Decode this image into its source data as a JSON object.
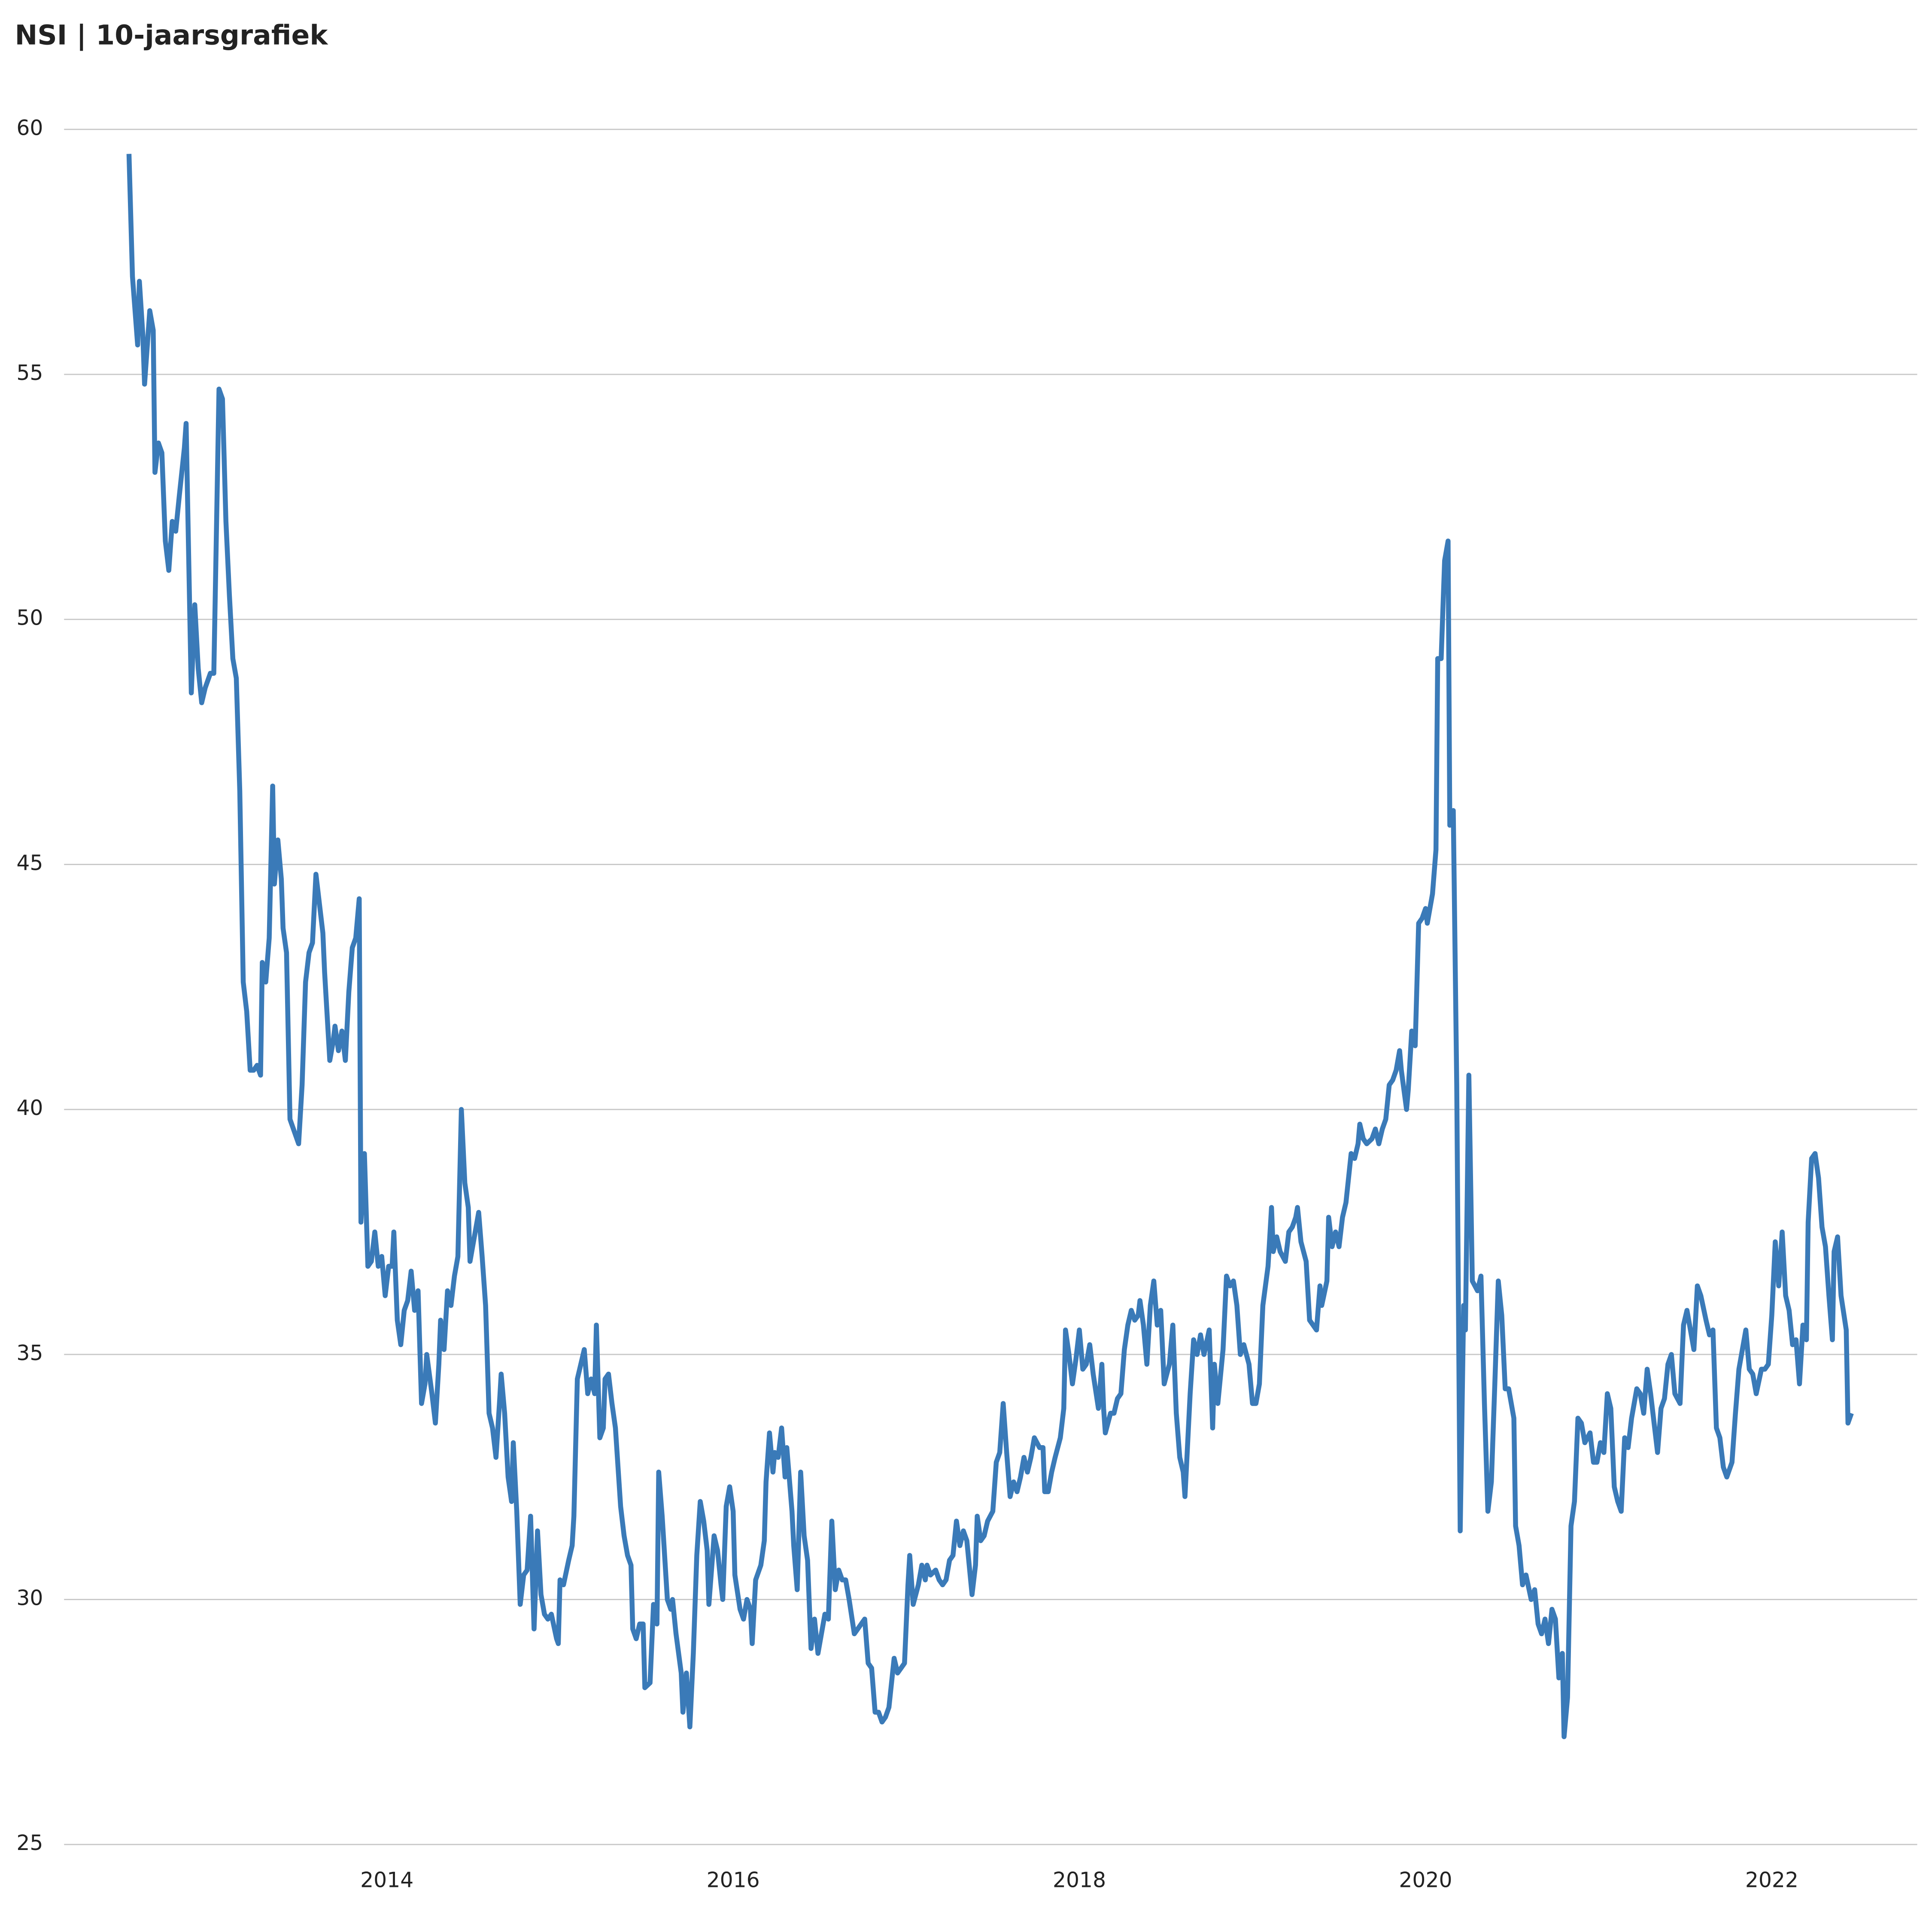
{
  "chart_data": {
    "type": "line",
    "title": "NSI | 10-jaarsgrafiek",
    "color": "#3a7ab8",
    "grid": true,
    "xlim": [
      2012.135,
      2022.84
    ],
    "xticks": [
      2014,
      2016,
      2018,
      2020,
      2022
    ],
    "ylim": [
      25,
      60
    ],
    "yticks": [
      25,
      30,
      35,
      40,
      45,
      50,
      55,
      60
    ],
    "x": [
      2012.51,
      2012.53,
      2012.56,
      2012.57,
      2012.59,
      2012.6,
      2012.63,
      2012.65,
      2012.66,
      2012.68,
      2012.7,
      2012.72,
      2012.74,
      2012.76,
      2012.78,
      2012.8,
      2012.83,
      2012.84,
      2012.87,
      2012.89,
      2012.91,
      2012.93,
      2012.95,
      2012.98,
      2013.0,
      2013.01,
      2013.03,
      2013.05,
      2013.07,
      2013.09,
      2013.11,
      2013.13,
      2013.15,
      2013.17,
      2013.19,
      2013.21,
      2013.23,
      2013.25,
      2013.27,
      2013.28,
      2013.3,
      2013.32,
      2013.34,
      2013.35,
      2013.37,
      2013.39,
      2013.4,
      2013.42,
      2013.44,
      2013.47,
      2013.49,
      2013.51,
      2013.53,
      2013.55,
      2013.57,
      2013.59,
      2013.61,
      2013.63,
      2013.64,
      2013.67,
      2013.69,
      2013.7,
      2013.72,
      2013.74,
      2013.76,
      2013.78,
      2013.8,
      2013.82,
      2013.84,
      2013.85,
      2013.87,
      2013.89,
      2013.91,
      2013.93,
      2013.95,
      2013.97,
      2013.99,
      2014.01,
      2014.03,
      2014.04,
      2014.06,
      2014.08,
      2014.1,
      2014.12,
      2014.14,
      2014.16,
      2014.18,
      2014.2,
      2014.22,
      2014.23,
      2014.26,
      2014.28,
      2014.3,
      2014.31,
      2014.33,
      2014.35,
      2014.37,
      2014.39,
      2014.41,
      2014.43,
      2014.45,
      2014.47,
      2014.48,
      2014.51,
      2014.53,
      2014.55,
      2014.57,
      2014.59,
      2014.61,
      2014.63,
      2014.65,
      2014.66,
      2014.68,
      2014.7,
      2014.72,
      2014.73,
      2014.75,
      2014.77,
      2014.79,
      2014.81,
      2014.83,
      2014.85,
      2014.87,
      2014.89,
      2014.91,
      2014.93,
      2014.95,
      2014.98,
      2014.99,
      2015.0,
      2015.02,
      2015.05,
      2015.07,
      2015.08,
      2015.1,
      2015.12,
      2015.14,
      2015.16,
      2015.18,
      2015.2,
      2015.21,
      2015.23,
      2015.25,
      2015.26,
      2015.28,
      2015.3,
      2015.32,
      2015.35,
      2015.37,
      2015.39,
      2015.41,
      2015.42,
      2015.44,
      2015.46,
      2015.48,
      2015.49,
      2015.52,
      2015.54,
      2015.56,
      2015.57,
      2015.59,
      2015.62,
      2015.64,
      2015.65,
      2015.67,
      2015.7,
      2015.71,
      2015.73,
      2015.75,
      2015.77,
      2015.79,
      2015.81,
      2015.83,
      2015.85,
      2015.86,
      2015.89,
      2015.91,
      2015.93,
      2015.94,
      2015.96,
      2015.98,
      2016.0,
      2016.01,
      2016.04,
      2016.06,
      2016.08,
      2016.1,
      2016.11,
      2016.13,
      2016.16,
      2016.18,
      2016.19,
      2016.21,
      2016.23,
      2016.24,
      2016.26,
      2016.28,
      2016.3,
      2016.31,
      2016.34,
      2016.35,
      2016.37,
      2016.39,
      2016.41,
      2016.43,
      2016.45,
      2016.47,
      2016.49,
      2016.51,
      2016.53,
      2016.55,
      2016.57,
      2016.59,
      2016.61,
      2016.63,
      2016.65,
      2016.67,
      2016.7,
      2016.72,
      2016.74,
      2016.76,
      2016.78,
      2016.8,
      2016.82,
      2016.84,
      2016.86,
      2016.88,
      2016.9,
      2016.93,
      2016.95,
      2016.97,
      2016.99,
      2017.01,
      2017.02,
      2017.04,
      2017.07,
      2017.09,
      2017.11,
      2017.12,
      2017.14,
      2017.17,
      2017.19,
      2017.21,
      2017.23,
      2017.25,
      2017.27,
      2017.29,
      2017.31,
      2017.33,
      2017.35,
      2017.38,
      2017.4,
      2017.41,
      2017.43,
      2017.45,
      2017.47,
      2017.5,
      2017.52,
      2017.54,
      2017.56,
      2017.58,
      2017.6,
      2017.62,
      2017.64,
      2017.66,
      2017.68,
      2017.7,
      2017.72,
      2017.74,
      2017.77,
      2017.79,
      2017.8,
      2017.82,
      2017.84,
      2017.86,
      2017.89,
      2017.91,
      2017.92,
      2017.94,
      2017.96,
      2017.98,
      2018.0,
      2018.02,
      2018.04,
      2018.06,
      2018.08,
      2018.11,
      2018.13,
      2018.14,
      2018.15,
      2018.18,
      2018.2,
      2018.22,
      2018.24,
      2018.26,
      2018.28,
      2018.3,
      2018.32,
      2018.34,
      2018.35,
      2018.37,
      2018.39,
      2018.41,
      2018.43,
      2018.45,
      2018.47,
      2018.49,
      2018.52,
      2018.54,
      2018.56,
      2018.58,
      2018.6,
      2018.61,
      2018.64,
      2018.66,
      2018.68,
      2018.7,
      2018.72,
      2018.75,
      2018.77,
      2018.78,
      2018.8,
      2018.83,
      2018.85,
      2018.87,
      2018.89,
      2018.91,
      2018.93,
      2018.95,
      2018.98,
      2019.0,
      2019.02,
      2019.04,
      2019.06,
      2019.09,
      2019.11,
      2019.12,
      2019.14,
      2019.16,
      2019.19,
      2019.21,
      2019.23,
      2019.25,
      2019.26,
      2019.28,
      2019.31,
      2019.33,
      2019.35,
      2019.37,
      2019.39,
      2019.4,
      2019.43,
      2019.44,
      2019.46,
      2019.48,
      2019.5,
      2019.52,
      2019.54,
      2019.57,
      2019.59,
      2019.61,
      2019.62,
      2019.64,
      2019.66,
      2019.69,
      2019.71,
      2019.73,
      2019.75,
      2019.77,
      2019.79,
      2019.81,
      2019.83,
      2019.85,
      2019.86,
      2019.89,
      2019.9,
      2019.92,
      2019.94,
      2019.96,
      2019.98,
      2020.0,
      2020.01,
      2020.04,
      2020.06,
      2020.07,
      2020.09,
      2020.11,
      2020.13,
      2020.14,
      2020.16,
      2020.18,
      2020.2,
      2020.22,
      2020.23,
      2020.25,
      2020.27,
      2020.3,
      2020.32,
      2020.34,
      2020.36,
      2020.38,
      2020.4,
      2020.42,
      2020.44,
      2020.46,
      2020.48,
      2020.51,
      2020.52,
      2020.54,
      2020.56,
      2020.58,
      2020.61,
      2020.63,
      2020.65,
      2020.67,
      2020.69,
      2020.71,
      2020.73,
      2020.75,
      2020.77,
      2020.79,
      2020.8,
      2020.82,
      2020.84,
      2020.86,
      2020.88,
      2020.9,
      2020.92,
      2020.95,
      2020.97,
      2020.99,
      2021.01,
      2021.03,
      2021.05,
      2021.07,
      2021.09,
      2021.11,
      2021.13,
      2021.15,
      2021.17,
      2021.19,
      2021.22,
      2021.24,
      2021.26,
      2021.28,
      2021.3,
      2021.32,
      2021.34,
      2021.36,
      2021.38,
      2021.4,
      2021.42,
      2021.44,
      2021.47,
      2021.49,
      2021.51,
      2021.53,
      2021.55,
      2021.57,
      2021.59,
      2021.62,
      2021.64,
      2021.66,
      2021.68,
      2021.7,
      2021.72,
      2021.74,
      2021.77,
      2021.79,
      2021.81,
      2021.83,
      2021.85,
      2021.87,
      2021.89,
      2021.91,
      2021.94,
      2021.96,
      2021.98,
      2022.0,
      2022.02,
      2022.04,
      2022.06,
      2022.08,
      2022.1,
      2022.12,
      2022.14,
      2022.16,
      2022.18,
      2022.2,
      2022.21,
      2022.23,
      2022.25,
      2022.27,
      2022.29,
      2022.31,
      2022.33,
      2022.35,
      2022.36,
      2022.38,
      2022.4,
      2022.43,
      2022.44,
      2022.46
    ],
    "values": [
      59.5,
      57.0,
      55.6,
      56.9,
      55.8,
      54.8,
      56.3,
      55.9,
      53.0,
      53.6,
      53.4,
      51.6,
      51.0,
      52.0,
      51.8,
      52.5,
      53.5,
      54.0,
      48.5,
      50.3,
      49.0,
      48.3,
      48.6,
      48.9,
      48.9,
      50.8,
      54.7,
      54.5,
      52.0,
      50.5,
      49.2,
      48.8,
      46.5,
      42.6,
      42.0,
      40.8,
      40.8,
      40.9,
      40.7,
      43.0,
      42.6,
      43.5,
      46.6,
      44.6,
      45.5,
      44.7,
      43.7,
      43.2,
      39.8,
      39.5,
      39.3,
      40.5,
      42.6,
      43.2,
      43.4,
      44.8,
      44.2,
      43.6,
      42.8,
      41.0,
      41.4,
      41.7,
      41.2,
      41.6,
      41.0,
      42.4,
      43.3,
      43.5,
      44.3,
      37.7,
      39.1,
      36.8,
      36.9,
      37.5,
      36.8,
      37.0,
      36.2,
      36.8,
      36.8,
      37.5,
      35.7,
      35.2,
      35.9,
      36.1,
      36.7,
      35.9,
      36.3,
      34.0,
      34.4,
      35.0,
      34.2,
      33.6,
      34.8,
      35.7,
      35.1,
      36.3,
      36.0,
      36.6,
      37.0,
      40.0,
      38.5,
      38.0,
      36.9,
      37.5,
      37.9,
      37.0,
      36.0,
      33.8,
      33.5,
      32.9,
      34.0,
      34.6,
      33.8,
      32.5,
      32.0,
      33.2,
      31.8,
      29.9,
      30.5,
      30.6,
      31.7,
      29.4,
      31.4,
      30.1,
      29.7,
      29.6,
      29.7,
      29.2,
      29.1,
      30.4,
      30.3,
      30.8,
      31.1,
      31.7,
      34.5,
      34.8,
      35.1,
      34.2,
      34.5,
      34.2,
      35.6,
      33.3,
      33.5,
      34.5,
      34.6,
      34.0,
      33.5,
      31.9,
      31.3,
      30.9,
      30.7,
      29.4,
      29.2,
      29.5,
      29.5,
      28.2,
      28.3,
      29.9,
      29.5,
      32.6,
      31.7,
      30.0,
      29.8,
      30.0,
      29.3,
      28.5,
      27.7,
      28.5,
      27.4,
      28.9,
      30.9,
      32.0,
      31.6,
      31.0,
      29.9,
      31.3,
      31.0,
      30.3,
      30.0,
      31.9,
      32.3,
      31.8,
      30.5,
      29.8,
      29.6,
      30.0,
      29.8,
      29.1,
      30.4,
      30.7,
      31.2,
      32.4,
      33.4,
      32.6,
      33.0,
      32.9,
      33.5,
      32.5,
      33.1,
      31.8,
      31.1,
      30.2,
      32.6,
      31.3,
      30.8,
      29.0,
      29.6,
      28.9,
      29.3,
      29.7,
      29.6,
      31.6,
      30.2,
      30.6,
      30.4,
      30.4,
      30.0,
      29.3,
      29.4,
      29.5,
      29.6,
      28.7,
      28.6,
      27.7,
      27.7,
      27.5,
      27.6,
      27.8,
      28.8,
      28.5,
      28.6,
      28.7,
      30.3,
      30.9,
      29.9,
      30.3,
      30.7,
      30.4,
      30.7,
      30.5,
      30.6,
      30.4,
      30.3,
      30.4,
      30.8,
      30.9,
      31.6,
      31.1,
      31.4,
      31.2,
      30.1,
      30.7,
      31.7,
      31.2,
      31.3,
      31.6,
      31.8,
      32.8,
      33.0,
      34.0,
      33.0,
      32.1,
      32.4,
      32.2,
      32.5,
      32.9,
      32.6,
      32.9,
      33.3,
      33.1,
      33.1,
      32.2,
      32.2,
      32.6,
      32.9,
      33.3,
      33.9,
      35.5,
      35.0,
      34.4,
      34.9,
      35.5,
      34.7,
      34.8,
      35.2,
      34.6,
      33.9,
      34.8,
      33.9,
      33.4,
      33.8,
      33.8,
      34.1,
      34.2,
      35.1,
      35.6,
      35.9,
      35.7,
      35.8,
      36.1,
      35.6,
      34.8,
      36.0,
      36.5,
      35.6,
      35.9,
      34.4,
      34.8,
      35.6,
      33.8,
      32.9,
      32.6,
      32.1,
      34.2,
      35.3,
      35.0,
      35.4,
      35.0,
      35.5,
      33.5,
      34.8,
      34.0,
      35.1,
      36.6,
      36.4,
      36.5,
      36.0,
      35.0,
      35.2,
      34.8,
      34.0,
      34.0,
      34.4,
      36.0,
      36.8,
      38.0,
      37.1,
      37.4,
      37.1,
      36.9,
      37.5,
      37.6,
      37.8,
      38.0,
      37.3,
      36.9,
      35.7,
      35.6,
      35.5,
      36.4,
      36.0,
      36.5,
      37.8,
      37.2,
      37.5,
      37.2,
      37.8,
      38.1,
      39.1,
      39.0,
      39.3,
      39.7,
      39.4,
      39.3,
      39.4,
      39.6,
      39.3,
      39.6,
      39.8,
      40.5,
      40.6,
      40.8,
      41.2,
      40.8,
      40.0,
      40.4,
      41.6,
      41.3,
      43.8,
      43.9,
      44.1,
      43.8,
      44.4,
      45.3,
      49.2,
      49.2,
      51.2,
      51.6,
      45.8,
      46.1,
      40.5,
      31.4,
      36.0,
      35.5,
      40.7,
      36.5,
      36.3,
      36.6,
      34.0,
      31.8,
      32.4,
      34.4,
      36.5,
      35.8,
      34.3,
      34.3,
      33.7,
      31.5,
      31.1,
      30.3,
      30.5,
      30.0,
      30.2,
      29.5,
      29.3,
      29.6,
      29.1,
      29.8,
      29.6,
      28.4,
      28.9,
      27.2,
      28.0,
      31.5,
      32.0,
      33.7,
      33.6,
      33.2,
      33.4,
      32.8,
      32.8,
      33.2,
      33.0,
      34.2,
      33.9,
      32.3,
      32.0,
      31.8,
      33.3,
      33.1,
      33.7,
      34.3,
      34.2,
      33.8,
      34.7,
      34.2,
      33.6,
      33.0,
      33.9,
      34.1,
      34.8,
      35.0,
      34.2,
      34.0,
      35.6,
      35.9,
      35.5,
      35.1,
      36.4,
      36.2,
      35.7,
      35.4,
      35.5,
      33.5,
      33.3,
      32.7,
      32.5,
      32.8,
      33.8,
      34.7,
      35.1,
      35.5,
      34.7,
      34.6,
      34.2,
      34.7,
      34.7,
      34.8,
      35.8,
      37.3,
      36.4,
      37.5,
      36.2,
      35.9,
      35.2,
      35.3,
      34.4,
      35.6,
      35.3,
      37.7,
      39.0,
      39.1,
      38.6,
      37.6,
      37.2,
      36.2,
      35.3,
      37.1,
      37.4,
      36.2,
      35.5,
      33.6,
      33.8
    ]
  }
}
